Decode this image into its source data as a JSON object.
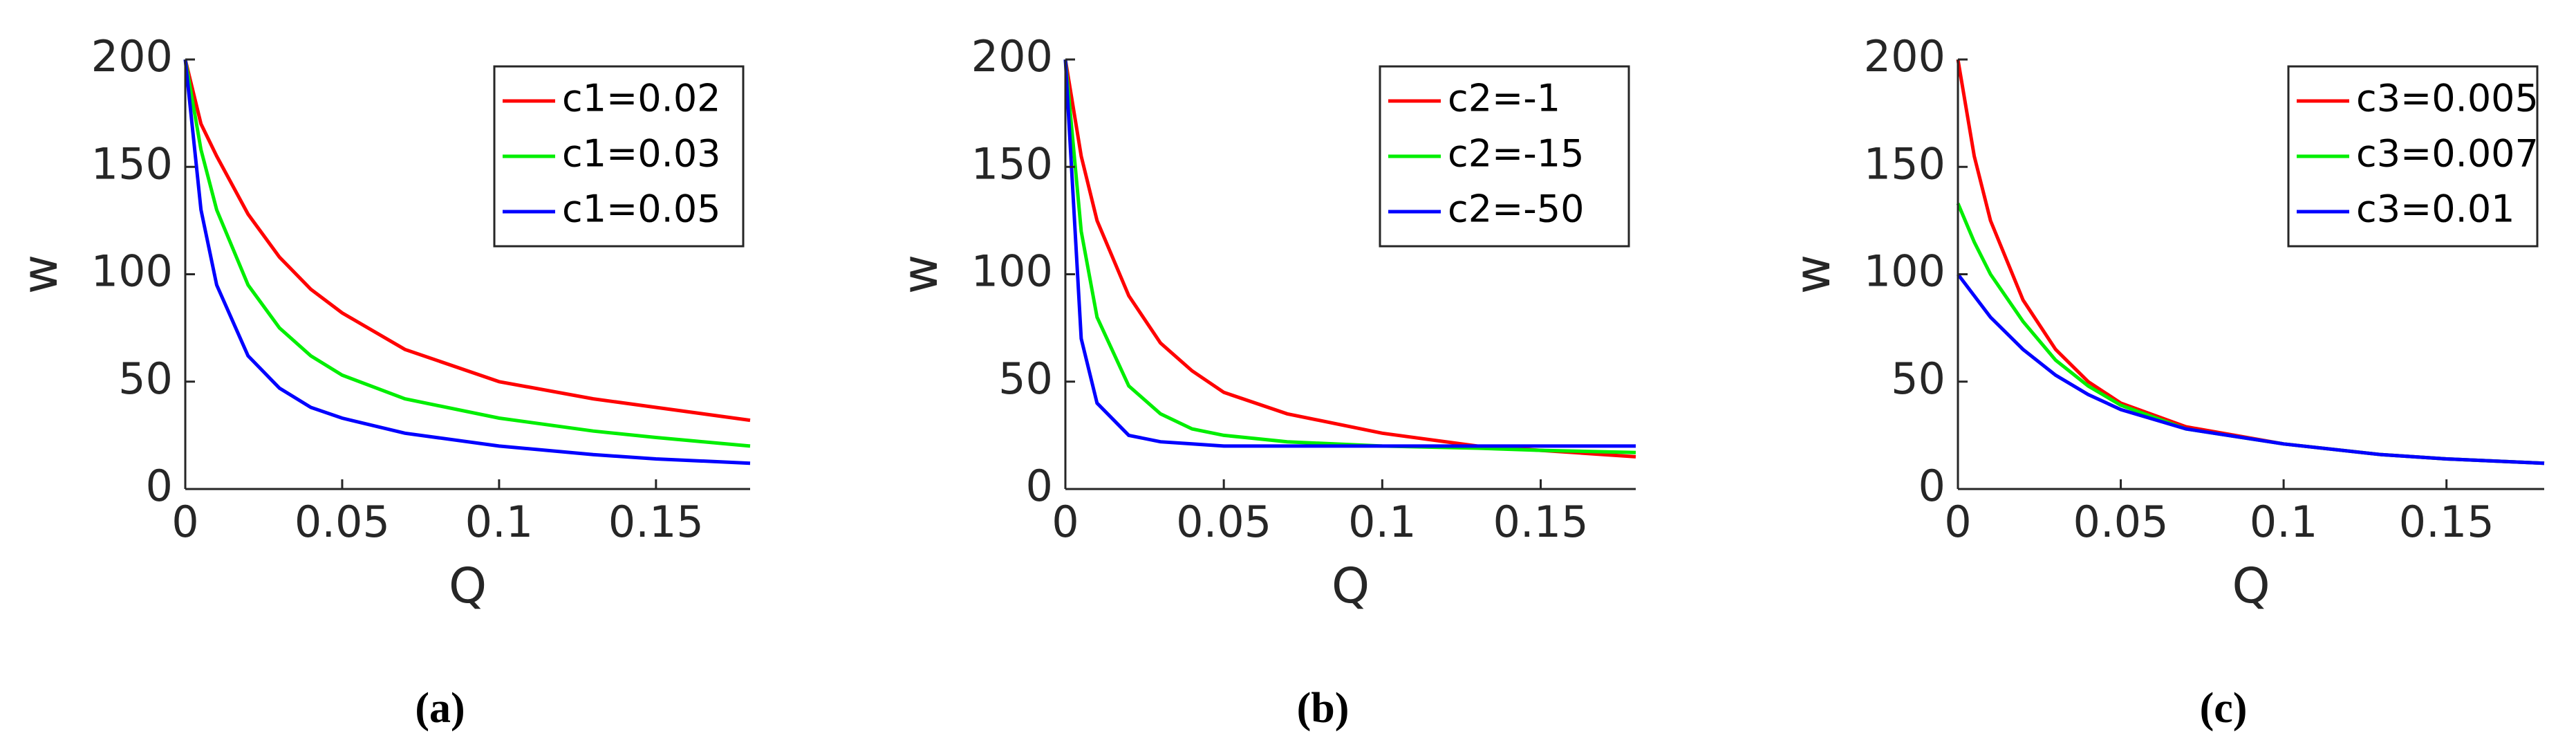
{
  "chart_data": [
    {
      "type": "line",
      "caption": "(a)",
      "xlabel": "Q",
      "ylabel": "w",
      "x": [
        0,
        0.005,
        0.01,
        0.02,
        0.03,
        0.04,
        0.05,
        0.07,
        0.1,
        0.13,
        0.15,
        0.18
      ],
      "series": [
        {
          "name": "c1=0.02",
          "color": "#ff0000",
          "values": [
            200,
            170,
            155,
            128,
            108,
            93,
            82,
            65,
            50,
            42,
            38,
            32
          ]
        },
        {
          "name": "c1=0.03",
          "color": "#00ee00",
          "values": [
            200,
            158,
            130,
            95,
            75,
            62,
            53,
            42,
            33,
            27,
            24,
            20
          ]
        },
        {
          "name": "c1=0.05",
          "color": "#0000ff",
          "values": [
            200,
            130,
            95,
            62,
            47,
            38,
            33,
            26,
            20,
            16,
            14,
            12
          ]
        }
      ],
      "xlim": [
        0,
        0.18
      ],
      "ylim": [
        0,
        200
      ],
      "xticks": [
        0,
        0.05,
        0.1,
        0.15
      ],
      "yticks": [
        0,
        50,
        100,
        150,
        200
      ],
      "legend": "upper right"
    },
    {
      "type": "line",
      "caption": "(b)",
      "xlabel": "Q",
      "ylabel": "w",
      "x": [
        0,
        0.005,
        0.01,
        0.02,
        0.03,
        0.04,
        0.05,
        0.07,
        0.1,
        0.13,
        0.15,
        0.18
      ],
      "series": [
        {
          "name": "c2=-1",
          "color": "#ff0000",
          "values": [
            200,
            155,
            125,
            90,
            68,
            55,
            45,
            35,
            26,
            20,
            18,
            15
          ]
        },
        {
          "name": "c2=-15",
          "color": "#00ee00",
          "values": [
            200,
            120,
            80,
            48,
            35,
            28,
            25,
            22,
            20,
            19,
            18,
            17
          ]
        },
        {
          "name": "c2=-50",
          "color": "#0000ff",
          "values": [
            200,
            70,
            40,
            25,
            22,
            21,
            20,
            20,
            20,
            20,
            20,
            20
          ]
        }
      ],
      "xlim": [
        0,
        0.18
      ],
      "ylim": [
        0,
        200
      ],
      "xticks": [
        0,
        0.05,
        0.1,
        0.15
      ],
      "yticks": [
        0,
        50,
        100,
        150,
        200
      ],
      "legend": "upper right"
    },
    {
      "type": "line",
      "caption": "(c)",
      "xlabel": "Q",
      "ylabel": "w",
      "x": [
        0,
        0.005,
        0.01,
        0.02,
        0.03,
        0.04,
        0.05,
        0.07,
        0.1,
        0.13,
        0.15,
        0.18
      ],
      "series": [
        {
          "name": "c3=0.005",
          "color": "#ff0000",
          "values": [
            200,
            155,
            125,
            88,
            65,
            50,
            40,
            29,
            21,
            16,
            14,
            12
          ]
        },
        {
          "name": "c3=0.007",
          "color": "#00ee00",
          "values": [
            133,
            115,
            100,
            78,
            60,
            48,
            39,
            28,
            21,
            16,
            14,
            12
          ]
        },
        {
          "name": "c3=0.01",
          "color": "#0000ff",
          "values": [
            100,
            90,
            80,
            65,
            53,
            44,
            37,
            28,
            21,
            16,
            14,
            12
          ]
        }
      ],
      "xlim": [
        0,
        0.18
      ],
      "ylim": [
        0,
        200
      ],
      "xticks": [
        0,
        0.05,
        0.1,
        0.15
      ],
      "yticks": [
        0,
        50,
        100,
        150,
        200
      ],
      "legend": "upper right"
    }
  ]
}
